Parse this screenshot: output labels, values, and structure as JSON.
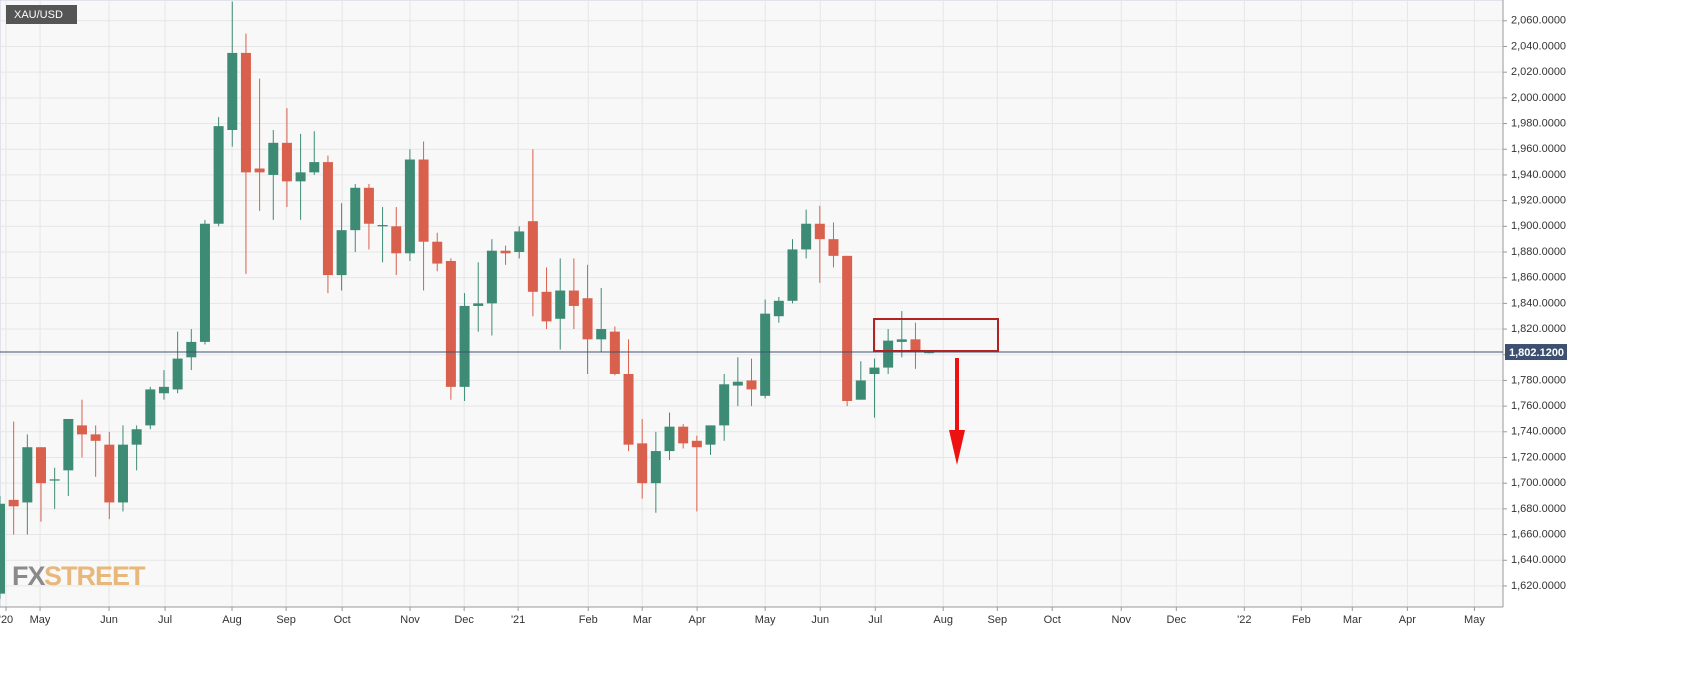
{
  "chart_data": {
    "type": "candlestick",
    "title": "XAU/USD",
    "logo": {
      "fx": "FX",
      "street": "STREET"
    },
    "up_color": "#3d8b75",
    "down_color": "#d9604c",
    "grid": true,
    "open": [
      1614,
      1687,
      1685,
      1728,
      1702,
      1710,
      1745,
      1738,
      1730,
      1685,
      1730,
      1745,
      1770,
      1773,
      1798,
      1810,
      1902,
      1975,
      2035,
      1945,
      1940,
      1965,
      1935,
      1942,
      1950,
      1862,
      1897,
      1930,
      1900,
      1900,
      1879,
      1952,
      1888,
      1873,
      1775,
      1838,
      1840,
      1881,
      1880,
      1904,
      1849,
      1828,
      1850,
      1844,
      1812,
      1818,
      1785,
      1731,
      1700,
      1725,
      1744,
      1733,
      1730,
      1745,
      1776,
      1780,
      1768,
      1830,
      1842,
      1882,
      1902,
      1890,
      1877,
      1765,
      1785,
      1790,
      1810,
      1812,
      1802
    ],
    "high": [
      1690,
      1748,
      1738,
      1728,
      1712,
      1750,
      1765,
      1745,
      1740,
      1745,
      1745,
      1775,
      1788,
      1818,
      1820,
      1905,
      1985,
      2075,
      2050,
      2015,
      1975,
      1992,
      1972,
      1974,
      1955,
      1918,
      1933,
      1933,
      1915,
      1915,
      1960,
      1966,
      1895,
      1875,
      1848,
      1872,
      1890,
      1885,
      1900,
      1960,
      1868,
      1875,
      1875,
      1870,
      1852,
      1822,
      1812,
      1750,
      1740,
      1755,
      1746,
      1737,
      1745,
      1785,
      1798,
      1797,
      1843,
      1845,
      1890,
      1913,
      1916,
      1903,
      1877,
      1795,
      1797,
      1820,
      1834,
      1825,
      1803
    ],
    "low": [
      1610,
      1660,
      1660,
      1670,
      1680,
      1690,
      1720,
      1705,
      1672,
      1678,
      1710,
      1742,
      1765,
      1770,
      1788,
      1808,
      1900,
      1962,
      1863,
      1912,
      1905,
      1915,
      1905,
      1940,
      1848,
      1850,
      1880,
      1882,
      1872,
      1862,
      1873,
      1850,
      1865,
      1765,
      1764,
      1818,
      1815,
      1870,
      1875,
      1830,
      1820,
      1804,
      1820,
      1785,
      1802,
      1784,
      1725,
      1688,
      1677,
      1718,
      1727,
      1678,
      1722,
      1733,
      1760,
      1760,
      1766,
      1825,
      1840,
      1875,
      1856,
      1868,
      1760,
      1765,
      1751,
      1785,
      1798,
      1789,
      1801
    ],
    "close": [
      1684,
      1682,
      1728,
      1700,
      1703,
      1750,
      1738,
      1733,
      1685,
      1730,
      1742,
      1773,
      1775,
      1797,
      1810,
      1902,
      1978,
      2035,
      1942,
      1942,
      1965,
      1935,
      1942,
      1950,
      1862,
      1897,
      1930,
      1902,
      1901,
      1879,
      1952,
      1888,
      1871,
      1775,
      1838,
      1840,
      1881,
      1879,
      1896,
      1849,
      1826,
      1850,
      1838,
      1812,
      1820,
      1785,
      1730,
      1700,
      1725,
      1744,
      1731,
      1728,
      1745,
      1777,
      1779,
      1773,
      1832,
      1842,
      1882,
      1902,
      1890,
      1877,
      1764,
      1780,
      1790,
      1811,
      1812,
      1802,
      1802
    ],
    "last_price": {
      "value": 1802.12,
      "label": "1,802.1200"
    },
    "xlim": [
      0,
      110
    ],
    "xticks": [
      {
        "value": 0.44,
        "label": "'20"
      },
      {
        "value": 2.93,
        "label": "May"
      },
      {
        "value": 7.98,
        "label": "Jun"
      },
      {
        "value": 12.08,
        "label": "Jul"
      },
      {
        "value": 16.98,
        "label": "Aug"
      },
      {
        "value": 20.94,
        "label": "Sep"
      },
      {
        "value": 25.04,
        "label": "Oct"
      },
      {
        "value": 30.01,
        "label": "Nov"
      },
      {
        "value": 33.97,
        "label": "Dec"
      },
      {
        "value": 37.92,
        "label": "'21"
      },
      {
        "value": 43.05,
        "label": "Feb"
      },
      {
        "value": 47.0,
        "label": "Mar"
      },
      {
        "value": 51.02,
        "label": "Apr"
      },
      {
        "value": 56.0,
        "label": "May"
      },
      {
        "value": 60.03,
        "label": "Jun"
      },
      {
        "value": 64.06,
        "label": "Jul"
      },
      {
        "value": 69.03,
        "label": "Aug"
      },
      {
        "value": 72.99,
        "label": "Sep"
      },
      {
        "value": 77.01,
        "label": "Oct"
      },
      {
        "value": 82.06,
        "label": "Nov"
      },
      {
        "value": 86.09,
        "label": "Dec"
      },
      {
        "value": 91.07,
        "label": "'22"
      },
      {
        "value": 95.24,
        "label": "Feb"
      },
      {
        "value": 98.97,
        "label": "Mar"
      },
      {
        "value": 103.0,
        "label": "Apr"
      },
      {
        "value": 107.91,
        "label": "May"
      }
    ],
    "ylim": [
      1603.6,
      2076.2
    ],
    "yticks": [
      {
        "value": 1620,
        "label": "1,620.0000"
      },
      {
        "value": 1640,
        "label": "1,640.0000"
      },
      {
        "value": 1660,
        "label": "1,660.0000"
      },
      {
        "value": 1680,
        "label": "1,680.0000"
      },
      {
        "value": 1700,
        "label": "1,700.0000"
      },
      {
        "value": 1720,
        "label": "1,720.0000"
      },
      {
        "value": 1740,
        "label": "1,740.0000"
      },
      {
        "value": 1760,
        "label": "1,760.0000"
      },
      {
        "value": 1780,
        "label": "1,780.0000"
      },
      {
        "value": 1800,
        "label": "1,800.0000"
      },
      {
        "value": 1820,
        "label": "1,820.0000"
      },
      {
        "value": 1840,
        "label": "1,840.0000"
      },
      {
        "value": 1860,
        "label": "1,860.0000"
      },
      {
        "value": 1880,
        "label": "1,880.0000"
      },
      {
        "value": 1900,
        "label": "1,900.0000"
      },
      {
        "value": 1920,
        "label": "1,920.0000"
      },
      {
        "value": 1940,
        "label": "1,940.0000"
      },
      {
        "value": 1960,
        "label": "1,960.0000"
      },
      {
        "value": 1980,
        "label": "1,980.0000"
      },
      {
        "value": 2000,
        "label": "2,000.0000"
      },
      {
        "value": 2020,
        "label": "2,020.0000"
      },
      {
        "value": 2040,
        "label": "2,040.0000"
      },
      {
        "value": 2060,
        "label": "2,060.0000"
      }
    ]
  }
}
